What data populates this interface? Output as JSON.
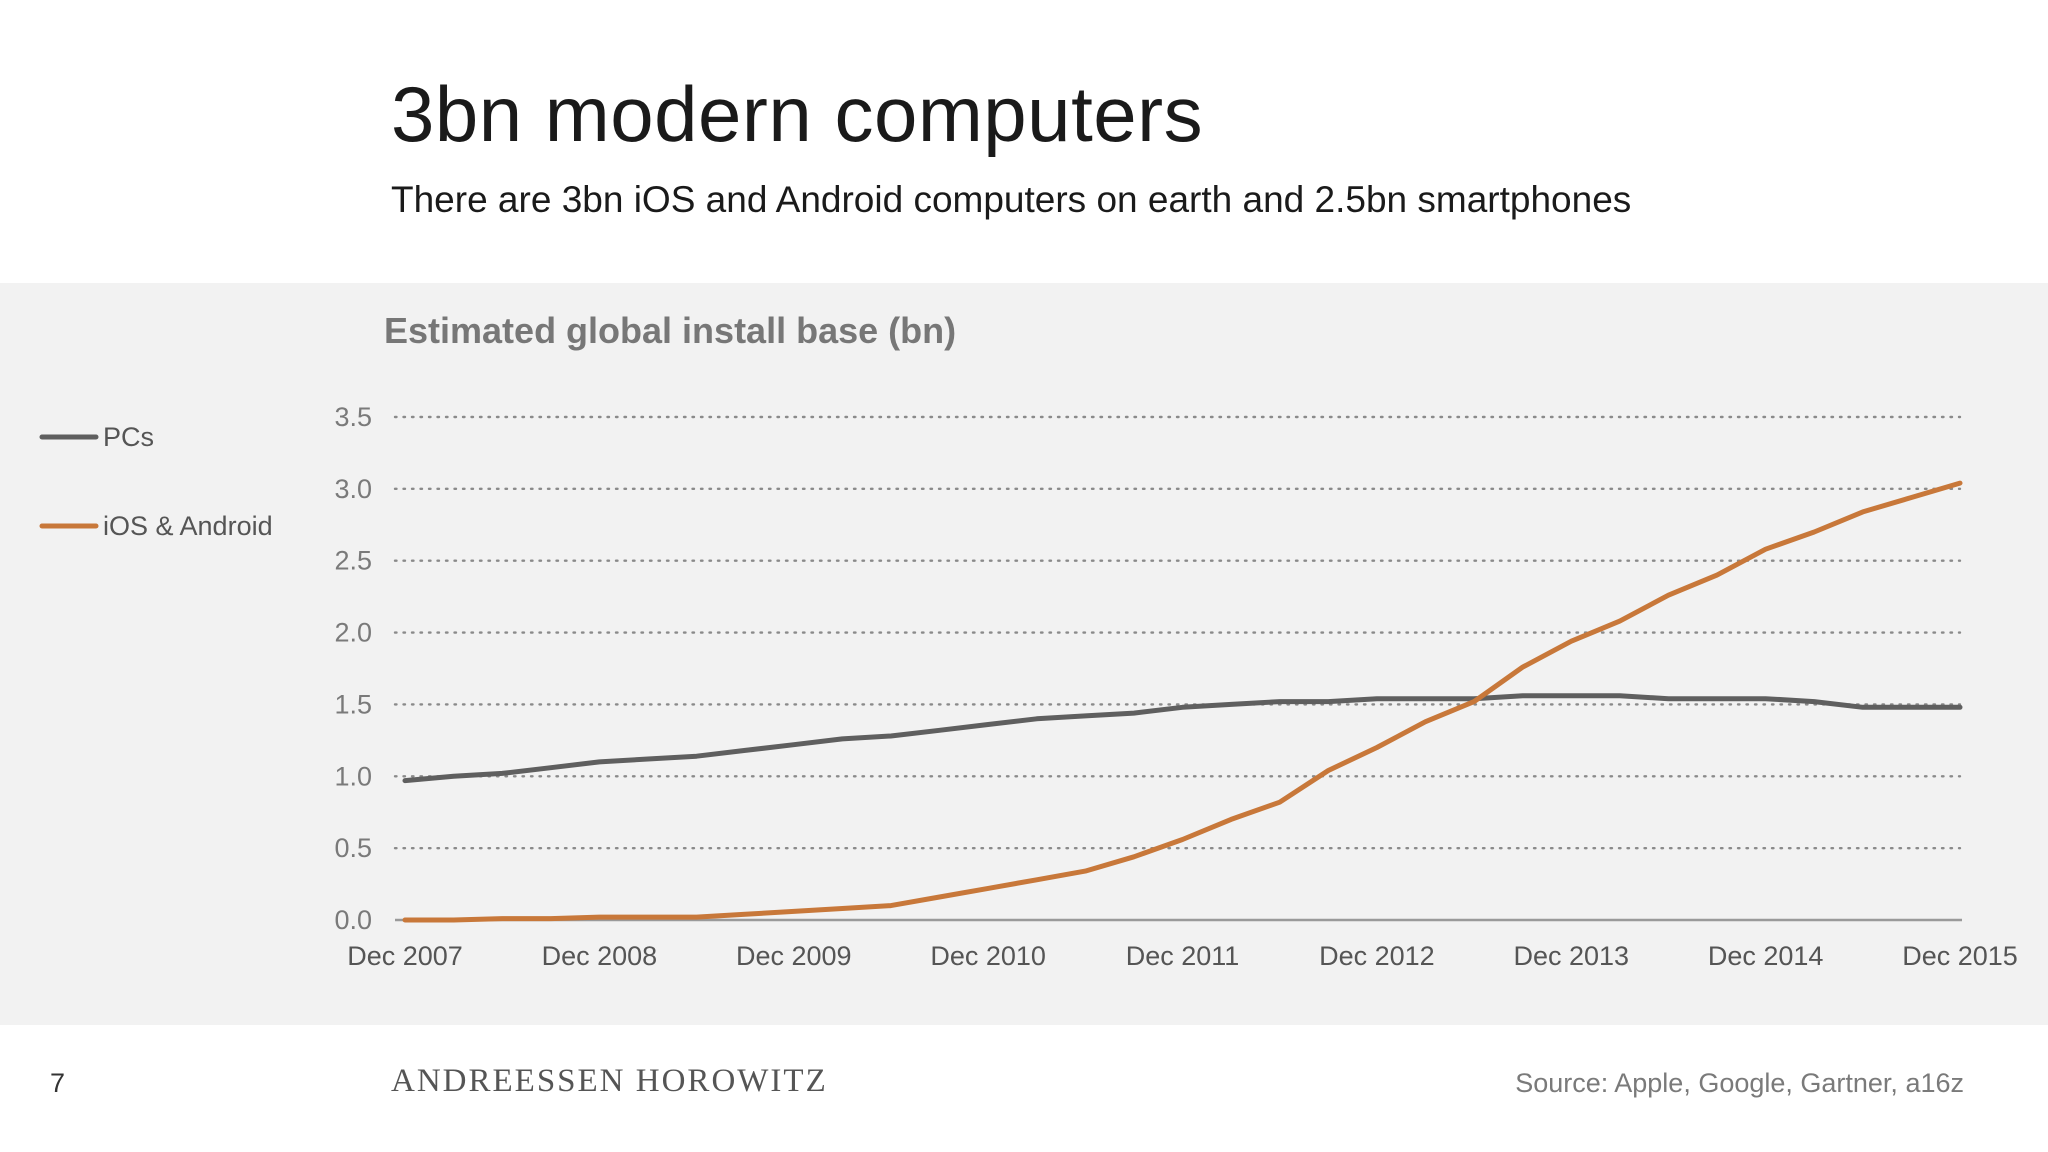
{
  "slide": {
    "title": "3bn modern computers",
    "subtitle": "There are 3bn iOS and Android computers on earth and 2.5bn smartphones",
    "page_number": "7",
    "brand": "ANDREESSEN HOROWITZ",
    "source": "Source: Apple, Google, Gartner, a16z"
  },
  "colors": {
    "panel_background": "#f2f2f2",
    "pcs": "#5f5f5f",
    "ios_android": "#c8783a",
    "gridline": "#8a8a8a"
  },
  "chart_data": {
    "type": "line",
    "title": "Estimated global install base (bn)",
    "xlabel": "",
    "ylabel": "",
    "ylim": [
      0,
      3.5
    ],
    "yticks": [
      "0.0",
      "0.5",
      "1.0",
      "1.5",
      "2.0",
      "2.5",
      "3.0",
      "3.5"
    ],
    "x_tick_labels": [
      "Dec 2007",
      "Dec 2008",
      "Dec 2009",
      "Dec 2010",
      "Dec 2011",
      "Dec 2012",
      "Dec 2013",
      "Dec 2014",
      "Dec 2015"
    ],
    "x": [
      "Dec 2007",
      "Mar 2008",
      "Jun 2008",
      "Sep 2008",
      "Dec 2008",
      "Mar 2009",
      "Jun 2009",
      "Sep 2009",
      "Dec 2009",
      "Mar 2010",
      "Jun 2010",
      "Sep 2010",
      "Dec 2010",
      "Mar 2011",
      "Jun 2011",
      "Sep 2011",
      "Dec 2011",
      "Mar 2012",
      "Jun 2012",
      "Sep 2012",
      "Dec 2012",
      "Mar 2013",
      "Jun 2013",
      "Sep 2013",
      "Dec 2013",
      "Mar 2014",
      "Jun 2014",
      "Sep 2014",
      "Dec 2014",
      "Mar 2015",
      "Jun 2015",
      "Sep 2015",
      "Dec 2015"
    ],
    "grid": "horizontal dotted",
    "legend_position": "left",
    "series": [
      {
        "name": "PCs",
        "color": "#5f5f5f",
        "values": [
          0.97,
          1.0,
          1.02,
          1.06,
          1.1,
          1.12,
          1.14,
          1.18,
          1.22,
          1.26,
          1.28,
          1.32,
          1.36,
          1.4,
          1.42,
          1.44,
          1.48,
          1.5,
          1.52,
          1.52,
          1.54,
          1.54,
          1.54,
          1.56,
          1.56,
          1.56,
          1.54,
          1.54,
          1.54,
          1.52,
          1.48,
          1.48,
          1.48
        ]
      },
      {
        "name": "iOS & Android",
        "color": "#c8783a",
        "values": [
          0.0,
          0.0,
          0.01,
          0.01,
          0.02,
          0.02,
          0.02,
          0.04,
          0.06,
          0.08,
          0.1,
          0.16,
          0.22,
          0.28,
          0.34,
          0.44,
          0.56,
          0.7,
          0.82,
          1.04,
          1.2,
          1.38,
          1.52,
          1.76,
          1.94,
          2.08,
          2.26,
          2.4,
          2.58,
          2.7,
          2.84,
          2.94,
          3.04
        ]
      }
    ]
  }
}
